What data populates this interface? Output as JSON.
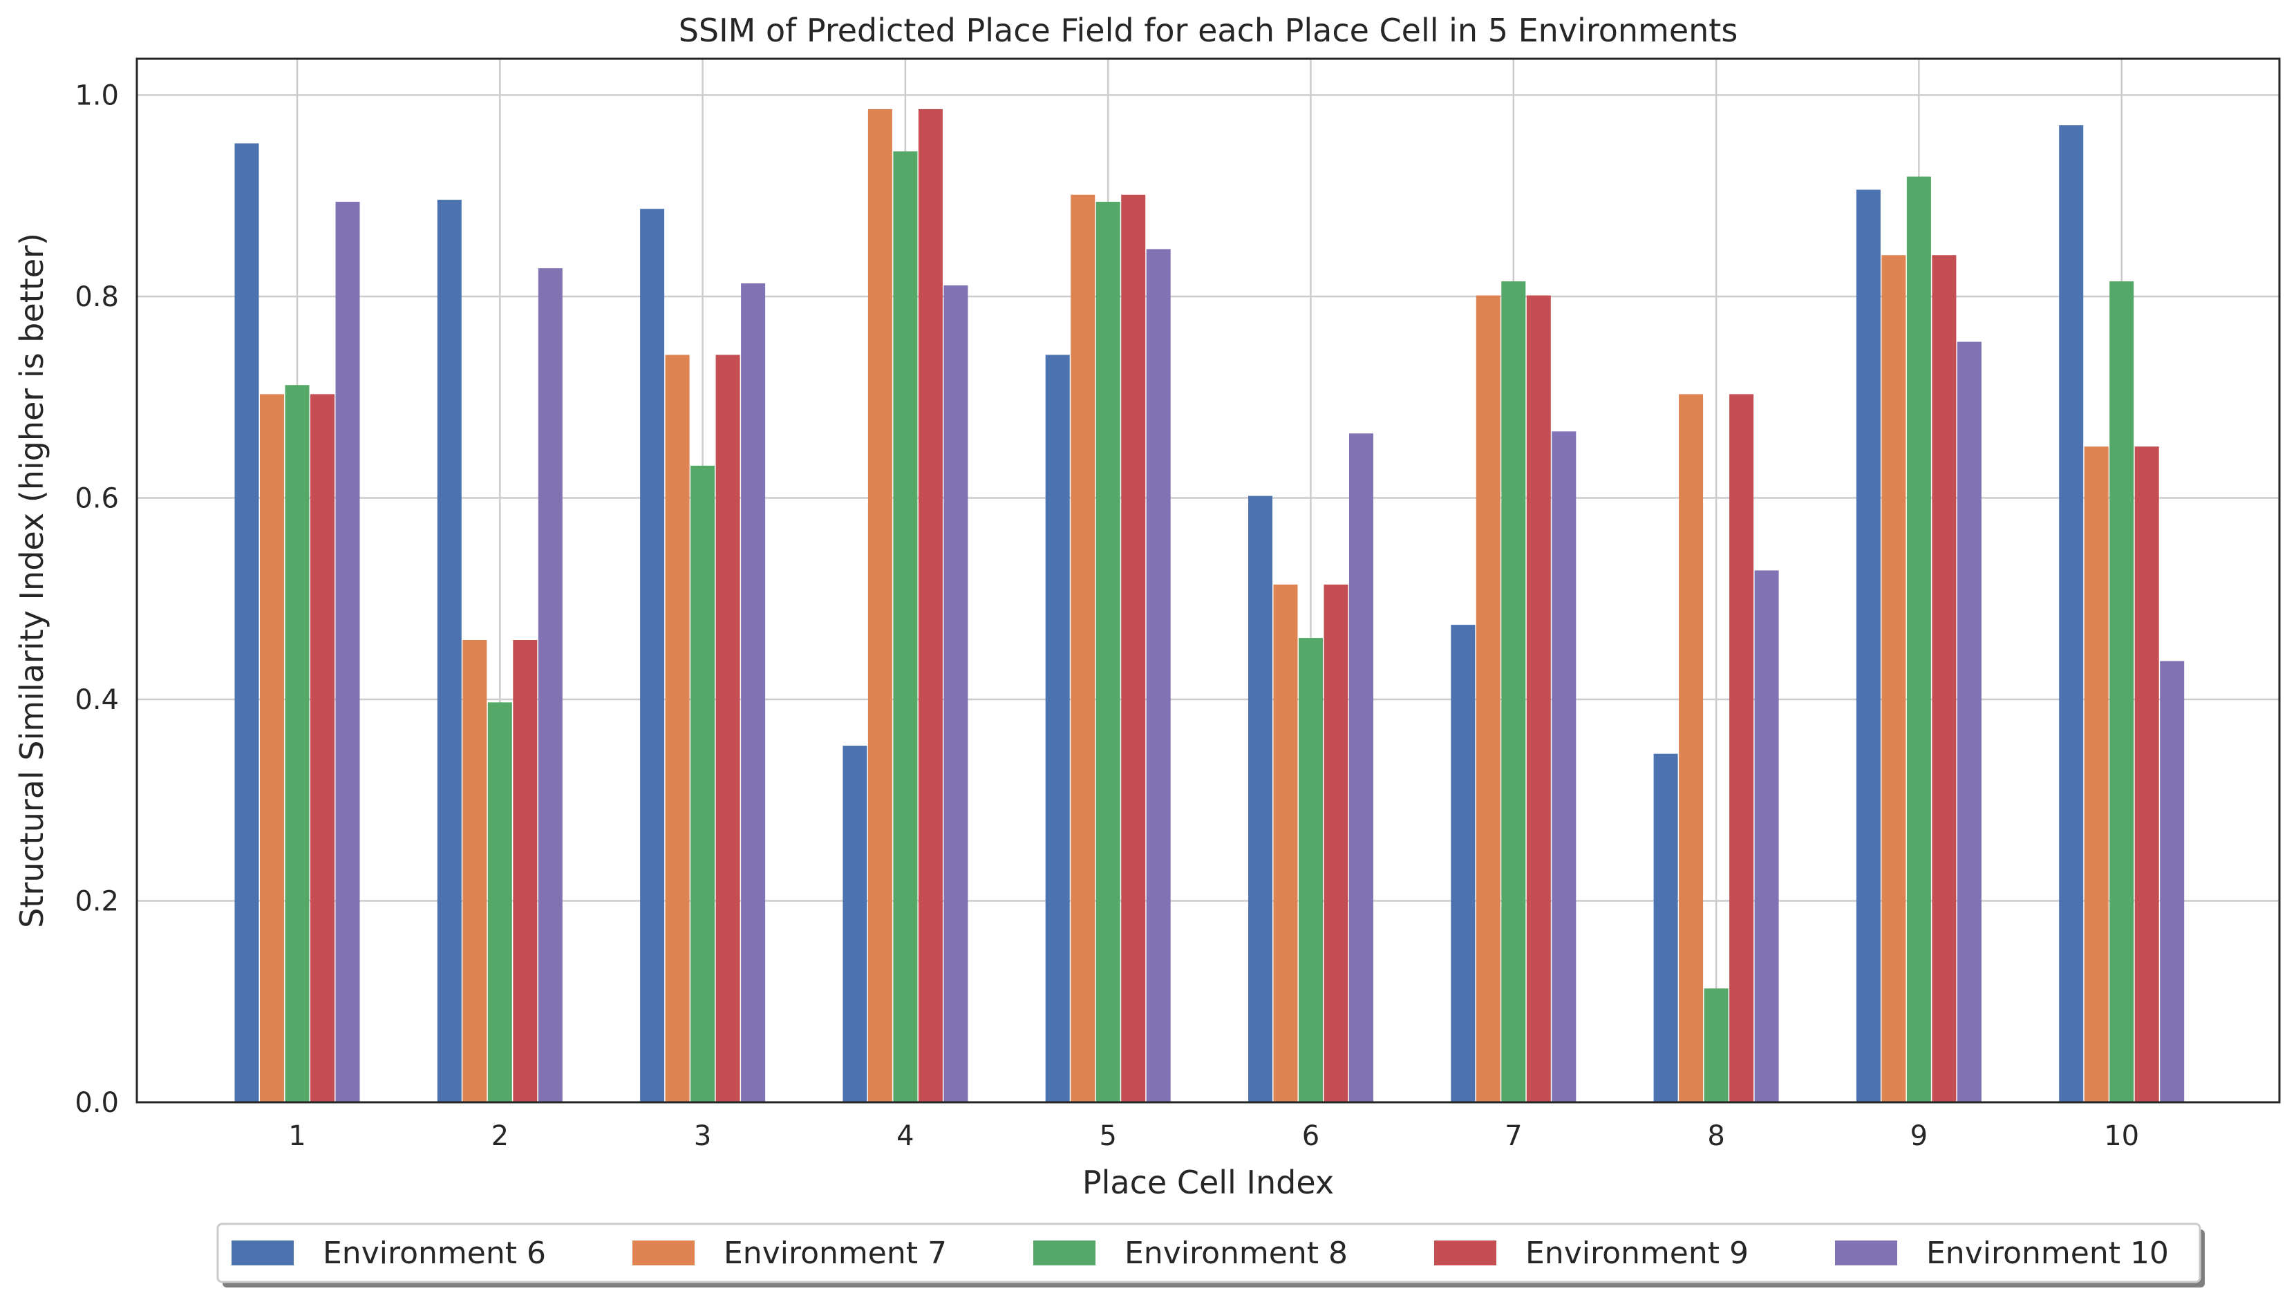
{
  "chart_data": {
    "type": "bar",
    "title": "SSIM of Predicted Place Field for each Place Cell in 5 Environments",
    "xlabel": "Place Cell Index",
    "ylabel": "Structural Similarity Index (higher is better)",
    "categories": [
      "1",
      "2",
      "3",
      "4",
      "5",
      "6",
      "7",
      "8",
      "9",
      "10"
    ],
    "ylim": [
      0,
      1.036
    ],
    "yticks": [
      0.0,
      0.2,
      0.4,
      0.6,
      0.8,
      1.0
    ],
    "ytick_labels": [
      "0.0",
      "0.2",
      "0.4",
      "0.6",
      "0.8",
      "1.0"
    ],
    "grid": true,
    "legend_position": "bottom-center",
    "series": [
      {
        "name": "Environment 6",
        "color": "#4c72b0",
        "values": [
          0.952,
          0.896,
          0.887,
          0.354,
          0.742,
          0.602,
          0.474,
          0.346,
          0.906,
          0.97
        ]
      },
      {
        "name": "Environment 7",
        "color": "#dd8452",
        "values": [
          0.703,
          0.459,
          0.742,
          0.986,
          0.901,
          0.514,
          0.801,
          0.703,
          0.841,
          0.651
        ]
      },
      {
        "name": "Environment 8",
        "color": "#55a868",
        "values": [
          0.712,
          0.397,
          0.632,
          0.944,
          0.894,
          0.461,
          0.815,
          0.113,
          0.919,
          0.815
        ]
      },
      {
        "name": "Environment 9",
        "color": "#c44e52",
        "values": [
          0.703,
          0.459,
          0.742,
          0.986,
          0.901,
          0.514,
          0.801,
          0.703,
          0.841,
          0.651
        ]
      },
      {
        "name": "Environment 10",
        "color": "#8172b3",
        "values": [
          0.894,
          0.828,
          0.813,
          0.811,
          0.847,
          0.664,
          0.666,
          0.528,
          0.755,
          0.438
        ]
      }
    ]
  }
}
